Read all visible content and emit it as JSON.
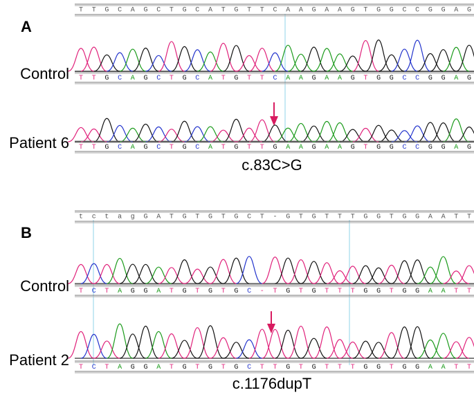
{
  "panels": [
    {
      "label": "A",
      "reference": "TTGCAGCTGCATGTTCAAGAAGTGGCCGGAG",
      "samples": [
        {
          "name": "Control",
          "calls": "TTGCAGCTGCATGTTCAAGAAGTGGCCGGAG"
        },
        {
          "name": "Patient 6",
          "calls": "TTGCAGCTGCATGTTGAAGAAGTGGCCGGAG"
        }
      ],
      "variant": "c.83C>G"
    },
    {
      "label": "B",
      "reference": "tctagGATGTGTGCT-GTGTTTGGTGGAATT",
      "samples": [
        {
          "name": "Control",
          "calls": "TCTAGGATGTGTGC-TGTGTTTGGTGGAATT"
        },
        {
          "name": "Patient 2",
          "calls": "TCTAGGATGTGTGCTTGTGTTTGGTGGAATT"
        }
      ],
      "variant": "c.1176dupT"
    }
  ]
}
